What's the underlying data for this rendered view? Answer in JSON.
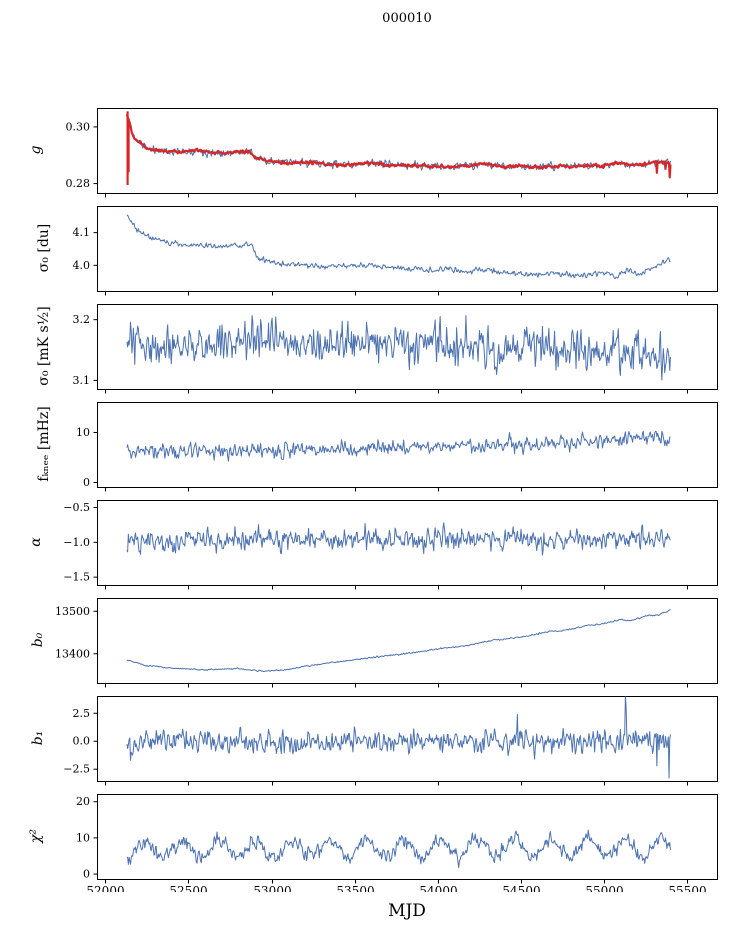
{
  "chart_data": {
    "type": "line",
    "title": "000010",
    "xlabel": "MJD",
    "xlim": [
      51950,
      55680
    ],
    "x_data_range": [
      52130,
      55400
    ],
    "xticks": [
      52000,
      52500,
      53000,
      53500,
      54000,
      54500,
      55000,
      55500
    ],
    "xtick_labels": [
      "52000",
      "52500",
      "53000",
      "53500",
      "54000",
      "54500",
      "55000",
      "55500"
    ],
    "line_color": "#4c72b0",
    "overlay_color": "#d62728",
    "subplots": [
      {
        "id": "g",
        "label": "g",
        "ylim": [
          0.2765,
          0.3065
        ],
        "yticks": [
          {
            "v": 0.28,
            "t": "0.28"
          },
          {
            "v": 0.3,
            "t": "0.30"
          }
        ],
        "series": [
          {
            "name": "g-raw",
            "color": "#4c72b0",
            "lw": 1,
            "seed": 11,
            "noise": 0.0007,
            "anchors": [
              [
                52130,
                0.3045
              ],
              [
                52170,
                0.2965
              ],
              [
                52250,
                0.2925
              ],
              [
                52350,
                0.2915
              ],
              [
                52450,
                0.2912
              ],
              [
                52550,
                0.2918
              ],
              [
                52650,
                0.2908
              ],
              [
                52800,
                0.2912
              ],
              [
                52870,
                0.2913
              ],
              [
                52900,
                0.2892
              ],
              [
                52980,
                0.288
              ],
              [
                53100,
                0.2872
              ],
              [
                53220,
                0.2876
              ],
              [
                53350,
                0.2868
              ],
              [
                53480,
                0.2866
              ],
              [
                53600,
                0.2873
              ],
              [
                53720,
                0.2866
              ],
              [
                53850,
                0.2864
              ],
              [
                53980,
                0.2862
              ],
              [
                54080,
                0.2858
              ],
              [
                54200,
                0.2866
              ],
              [
                54280,
                0.287
              ],
              [
                54380,
                0.286
              ],
              [
                54500,
                0.2862
              ],
              [
                54620,
                0.2858
              ],
              [
                54750,
                0.2862
              ],
              [
                54880,
                0.2863
              ],
              [
                55000,
                0.2862
              ],
              [
                55080,
                0.2874
              ],
              [
                55160,
                0.2868
              ],
              [
                55240,
                0.2866
              ],
              [
                55310,
                0.2878
              ],
              [
                55400,
                0.2872
              ]
            ]
          },
          {
            "name": "g-fit",
            "color": "#d62728",
            "lw": 2.2,
            "seed": 12,
            "noise": 0.00028,
            "anchors_from": 0,
            "vlines": [
              [
                52134,
                0.2795,
                0.3055
              ],
              [
                52140,
                0.284,
                0.303
              ]
            ],
            "point_spikes": [
              [
                55320,
                0.2838
              ],
              [
                55372,
                0.2852
              ],
              [
                55396,
                0.2822
              ]
            ]
          }
        ]
      },
      {
        "id": "sigma0-du",
        "label": "σ₀ [du]",
        "ylim": [
          3.92,
          4.18
        ],
        "yticks": [
          {
            "v": 4.0,
            "t": "4.0"
          },
          {
            "v": 4.1,
            "t": "4.1"
          }
        ],
        "series": [
          {
            "name": "sigma0-du",
            "color": "#4c72b0",
            "lw": 1,
            "seed": 21,
            "noise": 0.0045,
            "anchors": [
              [
                52130,
                4.155
              ],
              [
                52180,
                4.115
              ],
              [
                52250,
                4.09
              ],
              [
                52320,
                4.075
              ],
              [
                52420,
                4.068
              ],
              [
                52520,
                4.062
              ],
              [
                52620,
                4.06
              ],
              [
                52720,
                4.058
              ],
              [
                52820,
                4.062
              ],
              [
                52880,
                4.065
              ],
              [
                52910,
                4.025
              ],
              [
                52980,
                4.01
              ],
              [
                53080,
                4.002
              ],
              [
                53200,
                4.0
              ],
              [
                53320,
                3.996
              ],
              [
                53450,
                3.998
              ],
              [
                53570,
                4.0
              ],
              [
                53700,
                3.996
              ],
              [
                53820,
                3.99
              ],
              [
                53950,
                3.985
              ],
              [
                54060,
                3.99
              ],
              [
                54150,
                3.98
              ],
              [
                54280,
                3.988
              ],
              [
                54400,
                3.976
              ],
              [
                54520,
                3.972
              ],
              [
                54650,
                3.975
              ],
              [
                54780,
                3.972
              ],
              [
                54900,
                3.97
              ],
              [
                55000,
                3.976
              ],
              [
                55080,
                3.966
              ],
              [
                55150,
                3.985
              ],
              [
                55220,
                3.972
              ],
              [
                55300,
                3.996
              ],
              [
                55400,
                4.02
              ]
            ]
          }
        ]
      },
      {
        "id": "sigma0-mk",
        "label": "σ₀ [mK s¹⁄₂]",
        "ylim": [
          3.085,
          3.225
        ],
        "yticks": [
          {
            "v": 3.1,
            "t": "3.1"
          },
          {
            "v": 3.2,
            "t": "3.2"
          }
        ],
        "series": [
          {
            "name": "sigma0-mk",
            "color": "#4c72b0",
            "lw": 1,
            "seed": 31,
            "noise": 0.017,
            "anchors": [
              [
                52130,
                3.156
              ],
              [
                52400,
                3.162
              ],
              [
                52700,
                3.158
              ],
              [
                53000,
                3.165
              ],
              [
                53300,
                3.158
              ],
              [
                53600,
                3.161
              ],
              [
                53900,
                3.156
              ],
              [
                54200,
                3.158
              ],
              [
                54500,
                3.152
              ],
              [
                54800,
                3.156
              ],
              [
                55000,
                3.148
              ],
              [
                55200,
                3.152
              ],
              [
                55300,
                3.14
              ],
              [
                55400,
                3.143
              ]
            ]
          }
        ]
      },
      {
        "id": "fknee",
        "label": "fₖₙₑₑ [mHz]",
        "ylim": [
          -1,
          16
        ],
        "yticks": [
          {
            "v": 0,
            "t": "0"
          },
          {
            "v": 10,
            "t": "10"
          }
        ],
        "series": [
          {
            "name": "fknee",
            "color": "#4c72b0",
            "lw": 1,
            "seed": 41,
            "noise": 0.8,
            "anchors": [
              [
                52130,
                6.4
              ],
              [
                52500,
                6.2
              ],
              [
                53000,
                6.3
              ],
              [
                53500,
                6.8
              ],
              [
                54000,
                7.2
              ],
              [
                54500,
                7.7
              ],
              [
                54900,
                8.2
              ],
              [
                55150,
                9.0
              ],
              [
                55300,
                8.8
              ],
              [
                55400,
                9.0
              ]
            ]
          }
        ]
      },
      {
        "id": "alpha",
        "label": "α",
        "ylim": [
          -1.62,
          -0.4
        ],
        "yticks": [
          {
            "v": -1.5,
            "t": "−1.5"
          },
          {
            "v": -1.0,
            "t": "−1.0"
          },
          {
            "v": -0.5,
            "t": "−0.5"
          }
        ],
        "series": [
          {
            "name": "alpha",
            "color": "#4c72b0",
            "lw": 1,
            "seed": 51,
            "noise": 0.082,
            "anchors": [
              [
                52130,
                -0.97
              ],
              [
                53500,
                -0.96
              ],
              [
                55400,
                -0.95
              ]
            ]
          }
        ]
      },
      {
        "id": "b0",
        "label": "b₀",
        "ylim": [
          13330,
          13530
        ],
        "yticks": [
          {
            "v": 13400,
            "t": "13400"
          },
          {
            "v": 13500,
            "t": "13500"
          }
        ],
        "series": [
          {
            "name": "b0",
            "color": "#4c72b0",
            "lw": 1,
            "seed": 61,
            "noise": 0.9,
            "anchors": [
              [
                52130,
                13385
              ],
              [
                52250,
                13372
              ],
              [
                52400,
                13366
              ],
              [
                52600,
                13362
              ],
              [
                52800,
                13365
              ],
              [
                52950,
                13359
              ],
              [
                53060,
                13361
              ],
              [
                53200,
                13370
              ],
              [
                53400,
                13381
              ],
              [
                53600,
                13391
              ],
              [
                53800,
                13400
              ],
              [
                54000,
                13411
              ],
              [
                54200,
                13421
              ],
              [
                54320,
                13431
              ],
              [
                54500,
                13439
              ],
              [
                54650,
                13451
              ],
              [
                54800,
                13457
              ],
              [
                54900,
                13467
              ],
              [
                55000,
                13471
              ],
              [
                55100,
                13481
              ],
              [
                55160,
                13477
              ],
              [
                55250,
                13489
              ],
              [
                55330,
                13491
              ],
              [
                55400,
                13504
              ]
            ]
          }
        ]
      },
      {
        "id": "b1",
        "label": "b₁",
        "ylim": [
          -3.6,
          4.0
        ],
        "yticks": [
          {
            "v": -2.5,
            "t": "−2.5"
          },
          {
            "v": 0.0,
            "t": "0.0"
          },
          {
            "v": 2.5,
            "t": "2.5"
          }
        ],
        "series": [
          {
            "name": "b1",
            "color": "#4c72b0",
            "lw": 1,
            "seed": 71,
            "noise": 0.52,
            "anchors": [
              [
                52130,
                -0.4
              ],
              [
                52300,
                0.0
              ],
              [
                55400,
                0.0
              ]
            ],
            "point_spikes": [
              [
                52150,
                -1.7
              ],
              [
                54480,
                2.4
              ],
              [
                55130,
                4.1
              ],
              [
                55135,
                3.0
              ],
              [
                55320,
                -2.2
              ],
              [
                55392,
                -3.3
              ]
            ]
          }
        ]
      },
      {
        "id": "chi2",
        "label": "χ²",
        "ylim": [
          -1.5,
          22
        ],
        "yticks": [
          {
            "v": 0,
            "t": "0"
          },
          {
            "v": 10,
            "t": "10"
          },
          {
            "v": 20,
            "t": "20"
          }
        ],
        "osc": {
          "amp": 2.3,
          "period": 222,
          "phase": -1.6
        },
        "clip_min": 1.6,
        "series": [
          {
            "name": "chi2",
            "color": "#4c72b0",
            "lw": 1,
            "seed": 81,
            "noise": 1.05,
            "anchors": [
              [
                52130,
                6.8
              ],
              [
                53500,
                7.0
              ],
              [
                55400,
                7.2
              ]
            ]
          }
        ]
      }
    ]
  }
}
